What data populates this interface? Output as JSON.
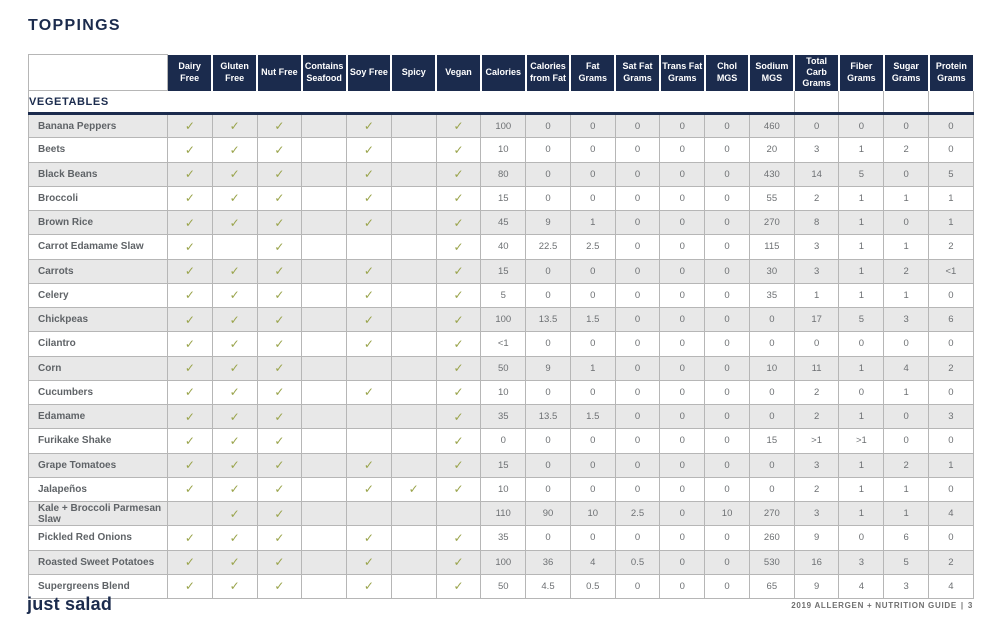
{
  "page_title": "TOPPINGS",
  "section_label": "VEGETABLES",
  "footer": {
    "logo_text": "just salad",
    "guide_text": "2019 ALLERGEN + NUTRITION GUIDE",
    "separator": "|",
    "page_number": "3"
  },
  "colors": {
    "navy": "#1b2b4d",
    "check_green": "#9aa44c",
    "row_alt_gray": "#e8e8e8",
    "border_gray": "#b6b6b6"
  },
  "table": {
    "check_glyph": "✓",
    "attribute_columns": [
      "Dairy Free",
      "Gluten Free",
      "Nut Free",
      "Contains Seafood",
      "Soy Free",
      "Spicy",
      "Vegan"
    ],
    "nutrition_columns": [
      "Calories",
      "Calories from Fat",
      "Fat Grams",
      "Sat Fat Grams",
      "Trans Fat Grams",
      "Chol MGS",
      "Sodium MGS",
      "Total Carb Grams",
      "Fiber Grams",
      "Sugar Grams",
      "Protein Grams"
    ],
    "rows": [
      {
        "name": "Banana Peppers",
        "checks": [
          1,
          1,
          1,
          0,
          1,
          0,
          1
        ],
        "values": [
          "100",
          "0",
          "0",
          "0",
          "0",
          "0",
          "460",
          "0",
          "0",
          "0",
          "0"
        ]
      },
      {
        "name": "Beets",
        "checks": [
          1,
          1,
          1,
          0,
          1,
          0,
          1
        ],
        "values": [
          "10",
          "0",
          "0",
          "0",
          "0",
          "0",
          "20",
          "3",
          "1",
          "2",
          "0"
        ]
      },
      {
        "name": "Black Beans",
        "checks": [
          1,
          1,
          1,
          0,
          1,
          0,
          1
        ],
        "values": [
          "80",
          "0",
          "0",
          "0",
          "0",
          "0",
          "430",
          "14",
          "5",
          "0",
          "5"
        ]
      },
      {
        "name": "Broccoli",
        "checks": [
          1,
          1,
          1,
          0,
          1,
          0,
          1
        ],
        "values": [
          "15",
          "0",
          "0",
          "0",
          "0",
          "0",
          "55",
          "2",
          "1",
          "1",
          "1"
        ]
      },
      {
        "name": "Brown Rice",
        "checks": [
          1,
          1,
          1,
          0,
          1,
          0,
          1
        ],
        "values": [
          "45",
          "9",
          "1",
          "0",
          "0",
          "0",
          "270",
          "8",
          "1",
          "0",
          "1"
        ]
      },
      {
        "name": "Carrot Edamame Slaw",
        "checks": [
          1,
          0,
          1,
          0,
          0,
          0,
          1
        ],
        "values": [
          "40",
          "22.5",
          "2.5",
          "0",
          "0",
          "0",
          "115",
          "3",
          "1",
          "1",
          "2"
        ]
      },
      {
        "name": "Carrots",
        "checks": [
          1,
          1,
          1,
          0,
          1,
          0,
          1
        ],
        "values": [
          "15",
          "0",
          "0",
          "0",
          "0",
          "0",
          "30",
          "3",
          "1",
          "2",
          "<1"
        ]
      },
      {
        "name": "Celery",
        "checks": [
          1,
          1,
          1,
          0,
          1,
          0,
          1
        ],
        "values": [
          "5",
          "0",
          "0",
          "0",
          "0",
          "0",
          "35",
          "1",
          "1",
          "1",
          "0"
        ]
      },
      {
        "name": "Chickpeas",
        "checks": [
          1,
          1,
          1,
          0,
          1,
          0,
          1
        ],
        "values": [
          "100",
          "13.5",
          "1.5",
          "0",
          "0",
          "0",
          "0",
          "17",
          "5",
          "3",
          "6"
        ]
      },
      {
        "name": "Cilantro",
        "checks": [
          1,
          1,
          1,
          0,
          1,
          0,
          1
        ],
        "values": [
          "<1",
          "0",
          "0",
          "0",
          "0",
          "0",
          "0",
          "0",
          "0",
          "0",
          "0"
        ]
      },
      {
        "name": "Corn",
        "checks": [
          1,
          1,
          1,
          0,
          0,
          0,
          1
        ],
        "values": [
          "50",
          "9",
          "1",
          "0",
          "0",
          "0",
          "10",
          "11",
          "1",
          "4",
          "2"
        ]
      },
      {
        "name": "Cucumbers",
        "checks": [
          1,
          1,
          1,
          0,
          1,
          0,
          1
        ],
        "values": [
          "10",
          "0",
          "0",
          "0",
          "0",
          "0",
          "0",
          "2",
          "0",
          "1",
          "0"
        ]
      },
      {
        "name": "Edamame",
        "checks": [
          1,
          1,
          1,
          0,
          0,
          0,
          1
        ],
        "values": [
          "35",
          "13.5",
          "1.5",
          "0",
          "0",
          "0",
          "0",
          "2",
          "1",
          "0",
          "3"
        ]
      },
      {
        "name": "Furikake Shake",
        "checks": [
          1,
          1,
          1,
          0,
          0,
          0,
          1
        ],
        "values": [
          "0",
          "0",
          "0",
          "0",
          "0",
          "0",
          "15",
          ">1",
          ">1",
          "0",
          "0"
        ]
      },
      {
        "name": "Grape Tomatoes",
        "checks": [
          1,
          1,
          1,
          0,
          1,
          0,
          1
        ],
        "values": [
          "15",
          "0",
          "0",
          "0",
          "0",
          "0",
          "0",
          "3",
          "1",
          "2",
          "1"
        ]
      },
      {
        "name": "Jalapeños",
        "checks": [
          1,
          1,
          1,
          0,
          1,
          1,
          1
        ],
        "values": [
          "10",
          "0",
          "0",
          "0",
          "0",
          "0",
          "0",
          "2",
          "1",
          "1",
          "0"
        ]
      },
      {
        "name": "Kale + Broccoli Parmesan Slaw",
        "checks": [
          0,
          1,
          1,
          0,
          0,
          0,
          0
        ],
        "values": [
          "110",
          "90",
          "10",
          "2.5",
          "0",
          "10",
          "270",
          "3",
          "1",
          "1",
          "4"
        ]
      },
      {
        "name": "Pickled Red Onions",
        "checks": [
          1,
          1,
          1,
          0,
          1,
          0,
          1
        ],
        "values": [
          "35",
          "0",
          "0",
          "0",
          "0",
          "0",
          "260",
          "9",
          "0",
          "6",
          "0"
        ]
      },
      {
        "name": "Roasted Sweet Potatoes",
        "checks": [
          1,
          1,
          1,
          0,
          1,
          0,
          1
        ],
        "values": [
          "100",
          "36",
          "4",
          "0.5",
          "0",
          "0",
          "530",
          "16",
          "3",
          "5",
          "2"
        ]
      },
      {
        "name": "Supergreens Blend",
        "checks": [
          1,
          1,
          1,
          0,
          1,
          0,
          1
        ],
        "values": [
          "50",
          "4.5",
          "0.5",
          "0",
          "0",
          "0",
          "65",
          "9",
          "4",
          "3",
          "4"
        ]
      }
    ]
  }
}
